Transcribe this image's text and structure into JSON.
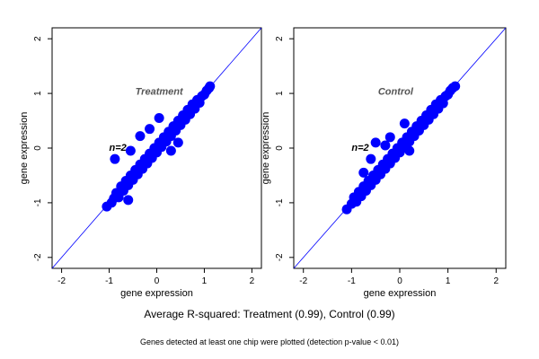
{
  "chart_data": [
    {
      "type": "scatter",
      "title": "Treatment",
      "annotation": "n=2",
      "xlabel": "gene expression",
      "ylabel": "gene expression",
      "xlim": [
        -2.2,
        2.2
      ],
      "ylim": [
        -2.2,
        2.2
      ],
      "xticks": [
        "-2",
        "-1",
        "0",
        "1",
        "2"
      ],
      "yticks": [
        "-2",
        "-1",
        "0",
        "1",
        "2"
      ],
      "reference_line": {
        "slope": 1,
        "intercept": 0
      },
      "grid": false,
      "point_color": "#0000ff",
      "line_color": "#0000ff",
      "points": [
        [
          -1.05,
          -1.07
        ],
        [
          -0.95,
          -1.0
        ],
        [
          -0.9,
          -0.92
        ],
        [
          -0.85,
          -0.82
        ],
        [
          -0.8,
          -0.9
        ],
        [
          -0.75,
          -0.7
        ],
        [
          -0.7,
          -0.78
        ],
        [
          -0.65,
          -0.6
        ],
        [
          -0.6,
          -0.68
        ],
        [
          -0.55,
          -0.5
        ],
        [
          -0.5,
          -0.58
        ],
        [
          -0.45,
          -0.4
        ],
        [
          -0.4,
          -0.48
        ],
        [
          -0.35,
          -0.3
        ],
        [
          -0.3,
          -0.38
        ],
        [
          -0.25,
          -0.2
        ],
        [
          -0.2,
          -0.28
        ],
        [
          -0.15,
          -0.1
        ],
        [
          -0.1,
          -0.18
        ],
        [
          -0.05,
          0.0
        ],
        [
          0.0,
          -0.08
        ],
        [
          0.05,
          0.1
        ],
        [
          0.1,
          0.02
        ],
        [
          0.15,
          0.2
        ],
        [
          0.2,
          0.12
        ],
        [
          0.25,
          0.3
        ],
        [
          0.3,
          0.22
        ],
        [
          0.35,
          0.4
        ],
        [
          0.4,
          0.32
        ],
        [
          0.45,
          0.5
        ],
        [
          0.5,
          0.42
        ],
        [
          0.55,
          0.6
        ],
        [
          0.6,
          0.52
        ],
        [
          0.65,
          0.7
        ],
        [
          0.7,
          0.62
        ],
        [
          0.75,
          0.8
        ],
        [
          0.8,
          0.72
        ],
        [
          0.85,
          0.88
        ],
        [
          0.9,
          0.83
        ],
        [
          0.95,
          0.95
        ],
        [
          1.0,
          0.98
        ],
        [
          1.05,
          1.05
        ],
        [
          1.1,
          1.1
        ],
        [
          1.12,
          1.13
        ],
        [
          -0.88,
          -0.2
        ],
        [
          -0.35,
          0.22
        ],
        [
          0.3,
          -0.05
        ],
        [
          -0.55,
          -0.05
        ],
        [
          -0.6,
          -0.95
        ],
        [
          0.05,
          0.55
        ],
        [
          -0.15,
          0.35
        ],
        [
          0.45,
          0.1
        ]
      ]
    },
    {
      "type": "scatter",
      "title": "Control",
      "annotation": "n=2",
      "xlabel": "gene expression",
      "ylabel": "gene expression",
      "xlim": [
        -2.2,
        2.2
      ],
      "ylim": [
        -2.2,
        2.2
      ],
      "xticks": [
        "-2",
        "-1",
        "0",
        "1",
        "2"
      ],
      "yticks": [
        "-2",
        "-1",
        "0",
        "1",
        "2"
      ],
      "reference_line": {
        "slope": 1,
        "intercept": 0
      },
      "grid": false,
      "point_color": "#0000ff",
      "line_color": "#0000ff",
      "points": [
        [
          -1.1,
          -1.12
        ],
        [
          -1.0,
          -1.02
        ],
        [
          -0.95,
          -0.9
        ],
        [
          -0.9,
          -0.98
        ],
        [
          -0.85,
          -0.8
        ],
        [
          -0.8,
          -0.88
        ],
        [
          -0.75,
          -0.7
        ],
        [
          -0.7,
          -0.78
        ],
        [
          -0.65,
          -0.6
        ],
        [
          -0.6,
          -0.68
        ],
        [
          -0.55,
          -0.5
        ],
        [
          -0.5,
          -0.58
        ],
        [
          -0.45,
          -0.4
        ],
        [
          -0.4,
          -0.48
        ],
        [
          -0.35,
          -0.3
        ],
        [
          -0.3,
          -0.38
        ],
        [
          -0.25,
          -0.2
        ],
        [
          -0.2,
          -0.28
        ],
        [
          -0.15,
          -0.1
        ],
        [
          -0.1,
          -0.18
        ],
        [
          -0.05,
          0.0
        ],
        [
          0.0,
          -0.08
        ],
        [
          0.05,
          0.1
        ],
        [
          0.1,
          0.02
        ],
        [
          0.15,
          0.2
        ],
        [
          0.2,
          0.12
        ],
        [
          0.25,
          0.3
        ],
        [
          0.3,
          0.22
        ],
        [
          0.35,
          0.4
        ],
        [
          0.4,
          0.32
        ],
        [
          0.45,
          0.5
        ],
        [
          0.5,
          0.42
        ],
        [
          0.55,
          0.6
        ],
        [
          0.6,
          0.52
        ],
        [
          0.65,
          0.7
        ],
        [
          0.7,
          0.62
        ],
        [
          0.75,
          0.8
        ],
        [
          0.8,
          0.72
        ],
        [
          0.85,
          0.88
        ],
        [
          0.9,
          0.82
        ],
        [
          0.95,
          0.95
        ],
        [
          1.0,
          0.98
        ],
        [
          1.05,
          1.05
        ],
        [
          1.1,
          1.1
        ],
        [
          1.15,
          1.13
        ],
        [
          -0.5,
          0.1
        ],
        [
          -0.2,
          0.2
        ],
        [
          -0.6,
          -0.2
        ],
        [
          0.2,
          -0.05
        ],
        [
          -0.3,
          0.05
        ],
        [
          0.1,
          0.45
        ],
        [
          -0.75,
          -0.45
        ]
      ]
    }
  ],
  "caption": {
    "main": "Average R-squared: Treatment (0.99), Control (0.99)",
    "sub": "Genes detected at least one chip were plotted (detection p-value < 0.01)"
  }
}
